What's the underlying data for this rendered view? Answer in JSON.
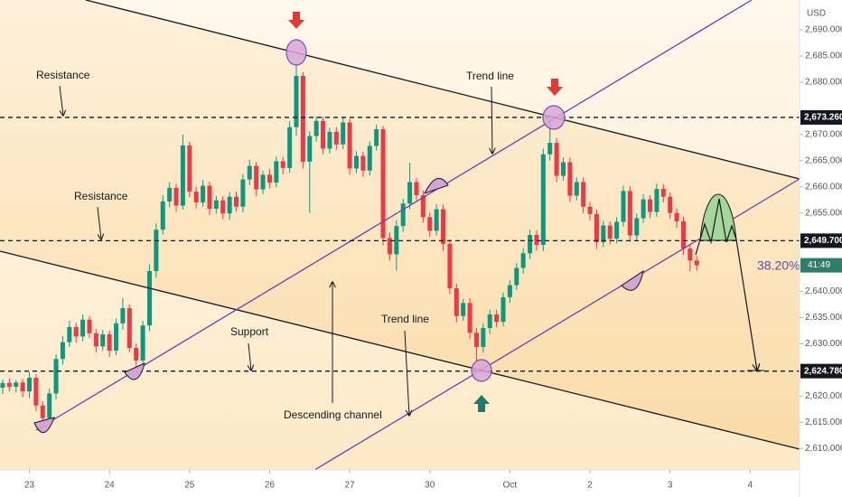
{
  "chart_data": {
    "type": "candlestick",
    "currency": "USD",
    "up_color": "#089981",
    "down_color": "#f23645",
    "open": [
      2621.6,
      2622.5,
      2621.8,
      2622.6,
      2620.9,
      2623.5,
      2618.2,
      2615.8,
      2620.5,
      2627.1,
      2630.3,
      2633.2,
      2631.4,
      2634.6,
      2632.0,
      2629.5,
      2631.8,
      2628.7,
      2633.9,
      2636.8,
      2629.2,
      2626.8,
      2633.5,
      2643.9,
      2651.8,
      2657.2,
      2659.8,
      2656.4,
      2667.9,
      2659.1,
      2657.0,
      2660.2,
      2655.8,
      2657.4,
      2654.9,
      2658.1,
      2656.2,
      2661.4,
      2664.0,
      2659.5,
      2662.3,
      2660.8,
      2664.9,
      2663.6,
      2671.4,
      2681.2,
      2664.8,
      2669.7,
      2672.6,
      2667.3,
      2670.5,
      2668.1,
      2672.3,
      2663.5,
      2665.9,
      2663.1,
      2667.8,
      2671.0,
      2650.2,
      2647.1,
      2652.5,
      2656.8,
      2660.9,
      2658.4,
      2654.2,
      2651.6,
      2655.7,
      2649.1,
      2640.6,
      2635.3,
      2637.8,
      2632.1,
      2629.4,
      2633.0,
      2635.6,
      2634.2,
      2638.9,
      2641.2,
      2644.5,
      2647.3,
      2650.8,
      2648.9,
      2666.2,
      2668.4,
      2662.1,
      2664.7,
      2658.3,
      2660.9,
      2656.2,
      2654.8,
      2649.4,
      2652.6,
      2650.1,
      2653.3,
      2659.2,
      2650.7,
      2654.0,
      2657.6,
      2655.2,
      2659.6,
      2658.1,
      2655.0,
      2653.4,
      2648.2,
      2645.9
    ],
    "high": [
      2623.2,
      2623.4,
      2623.1,
      2623.3,
      2624.6,
      2624.2,
      2619.0,
      2621.4,
      2628.0,
      2631.5,
      2634.4,
      2634.0,
      2635.6,
      2635.3,
      2632.8,
      2632.7,
      2632.5,
      2634.8,
      2638.7,
      2637.5,
      2630.1,
      2634.4,
      2645.2,
      2653.0,
      2658.4,
      2660.9,
      2660.6,
      2670.0,
      2668.6,
      2660.0,
      2661.3,
      2661.0,
      2658.3,
      2658.2,
      2659.0,
      2659.1,
      2662.4,
      2665.2,
      2664.8,
      2663.1,
      2663.4,
      2665.8,
      2665.7,
      2672.5,
      2683.6,
      2681.9,
      2670.6,
      2673.5,
      2673.4,
      2671.3,
      2671.4,
      2673.2,
      2673.0,
      2666.8,
      2666.7,
      2668.7,
      2671.9,
      2671.6,
      2651.3,
      2653.6,
      2657.7,
      2664.6,
      2661.7,
      2659.3,
      2655.1,
      2656.7,
      2656.6,
      2649.9,
      2641.5,
      2638.6,
      2638.7,
      2633.0,
      2633.9,
      2636.5,
      2636.5,
      2639.8,
      2642.1,
      2645.4,
      2648.3,
      2651.8,
      2651.7,
      2667.3,
      2673.3,
      2669.3,
      2665.6,
      2665.6,
      2661.8,
      2661.8,
      2657.1,
      2655.7,
      2653.5,
      2653.4,
      2654.2,
      2660.2,
      2660.1,
      2654.9,
      2658.6,
      2658.4,
      2660.6,
      2660.5,
      2658.9,
      2655.9,
      2654.3,
      2648.9,
      2646.8
    ],
    "low": [
      2620.4,
      2620.9,
      2620.7,
      2619.8,
      2619.6,
      2617.1,
      2614.5,
      2615.0,
      2619.4,
      2626.0,
      2629.4,
      2630.2,
      2630.5,
      2631.1,
      2628.3,
      2628.6,
      2627.5,
      2627.8,
      2632.7,
      2628.4,
      2625.3,
      2626.0,
      2632.4,
      2642.6,
      2650.9,
      2656.1,
      2655.2,
      2655.6,
      2658.0,
      2655.9,
      2656.2,
      2654.6,
      2654.9,
      2653.8,
      2653.7,
      2655.3,
      2655.1,
      2660.3,
      2658.2,
      2658.6,
      2659.7,
      2659.9,
      2662.4,
      2662.7,
      2669.8,
      2663.5,
      2655.0,
      2668.6,
      2666.2,
      2666.4,
      2667.0,
      2667.2,
      2662.3,
      2662.6,
      2661.9,
      2662.2,
      2666.9,
      2648.8,
      2645.9,
      2644.0,
      2651.4,
      2655.7,
      2657.3,
      2653.1,
      2650.4,
      2650.7,
      2647.8,
      2639.5,
      2634.1,
      2634.4,
      2631.0,
      2626.6,
      2628.3,
      2631.9,
      2633.1,
      2633.3,
      2637.8,
      2640.3,
      2643.4,
      2646.2,
      2647.8,
      2647.7,
      2665.0,
      2660.9,
      2661.2,
      2657.1,
      2657.4,
      2655.0,
      2653.6,
      2648.1,
      2648.5,
      2649.0,
      2649.2,
      2652.4,
      2649.5,
      2649.8,
      2653.1,
      2654.0,
      2654.3,
      2657.0,
      2653.9,
      2652.2,
      2647.0,
      2643.8,
      2644.0
    ],
    "close": [
      2622.5,
      2621.8,
      2622.6,
      2620.9,
      2623.5,
      2618.2,
      2615.8,
      2620.5,
      2627.1,
      2630.3,
      2633.2,
      2631.4,
      2634.6,
      2632.0,
      2629.5,
      2631.8,
      2628.7,
      2633.9,
      2636.8,
      2629.2,
      2626.8,
      2633.5,
      2643.9,
      2651.8,
      2657.2,
      2659.8,
      2656.4,
      2667.9,
      2659.1,
      2657.0,
      2660.2,
      2655.8,
      2657.4,
      2654.9,
      2658.1,
      2656.2,
      2661.4,
      2664.0,
      2659.5,
      2662.3,
      2660.8,
      2664.9,
      2663.6,
      2671.4,
      2681.2,
      2664.8,
      2669.7,
      2672.6,
      2667.3,
      2670.5,
      2668.1,
      2672.3,
      2663.5,
      2665.9,
      2663.1,
      2667.8,
      2671.0,
      2650.2,
      2647.1,
      2652.5,
      2656.8,
      2660.9,
      2658.4,
      2654.2,
      2651.6,
      2655.7,
      2649.1,
      2640.6,
      2635.3,
      2637.8,
      2632.1,
      2629.4,
      2633.0,
      2635.6,
      2634.2,
      2638.9,
      2641.2,
      2644.5,
      2647.3,
      2650.8,
      2648.9,
      2666.2,
      2668.4,
      2662.1,
      2664.7,
      2658.3,
      2660.9,
      2656.2,
      2654.8,
      2649.4,
      2652.6,
      2650.1,
      2653.3,
      2659.2,
      2650.7,
      2654.0,
      2657.6,
      2655.2,
      2659.6,
      2658.1,
      2655.0,
      2653.4,
      2648.2,
      2645.9,
      2645.0
    ],
    "xlim": [
      -0.4,
      119.4
    ],
    "xticks": [
      {
        "value": 4,
        "label": "23"
      },
      {
        "value": 16,
        "label": "24"
      },
      {
        "value": 28,
        "label": "25"
      },
      {
        "value": 40,
        "label": "26"
      },
      {
        "value": 52,
        "label": "27"
      },
      {
        "value": 64,
        "label": "30"
      },
      {
        "value": 76,
        "label": "Oct"
      },
      {
        "value": 88,
        "label": "2"
      },
      {
        "value": 100,
        "label": "3"
      },
      {
        "value": 112,
        "label": "4"
      }
    ],
    "ylim": [
      2605.9,
      2695.7
    ],
    "yticks": [
      {
        "value": 2690,
        "label": "2,690.000"
      },
      {
        "value": 2685,
        "label": "2,685.000"
      },
      {
        "value": 2680,
        "label": "2,680.000"
      },
      {
        "value": 2670,
        "label": "2,670.000"
      },
      {
        "value": 2665,
        "label": "2,665.000"
      },
      {
        "value": 2660,
        "label": "2,660.000"
      },
      {
        "value": 2655,
        "label": "2,655.000"
      },
      {
        "value": 2640,
        "label": "2,640.000"
      },
      {
        "value": 2635,
        "label": "2,635.000"
      },
      {
        "value": 2630,
        "label": "2,630.000"
      },
      {
        "value": 2620,
        "label": "2,620.000"
      },
      {
        "value": 2615,
        "label": "2,615.000"
      },
      {
        "value": 2610,
        "label": "2,610.000"
      }
    ],
    "levels": [
      {
        "value": 2673.26,
        "label": "2,673.260"
      },
      {
        "value": 2649.7,
        "label": "2,649.700"
      },
      {
        "value": 2624.78,
        "label": "2,624.780"
      }
    ],
    "countdown": "41:49",
    "annotations": [
      "Resistance",
      "Resistance",
      "Trend line",
      "Support",
      "Trend line",
      "Descending channel",
      "38.20%"
    ]
  }
}
